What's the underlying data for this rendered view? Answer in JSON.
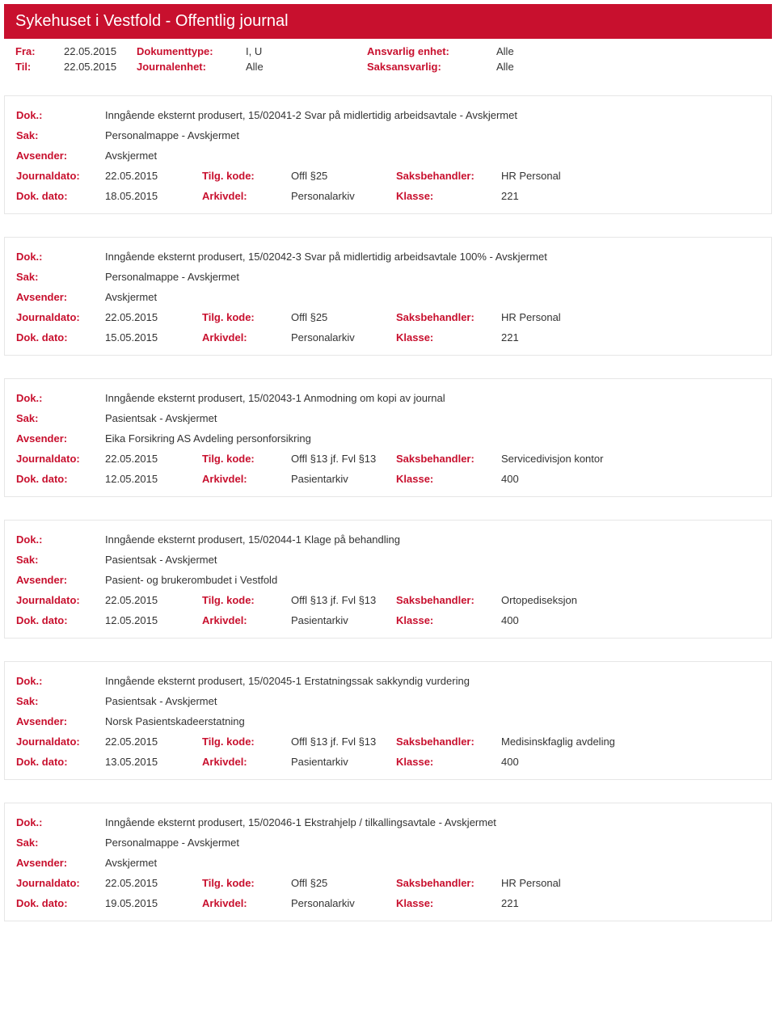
{
  "banner": {
    "title": "Sykehuset i Vestfold - Offentlig journal"
  },
  "meta": {
    "fra_label": "Fra:",
    "fra_value": "22.05.2015",
    "til_label": "Til:",
    "til_value": "22.05.2015",
    "dokumenttype_label": "Dokumenttype:",
    "dokumenttype_value": "I, U",
    "journalenhet_label": "Journalenhet:",
    "journalenhet_value": "Alle",
    "ansvarlig_label": "Ansvarlig enhet:",
    "ansvarlig_value": "Alle",
    "saksansvarlig_label": "Saksansvarlig:",
    "saksansvarlig_value": "Alle"
  },
  "labels": {
    "dok": "Dok.:",
    "sak": "Sak:",
    "avsender": "Avsender:",
    "journaldato": "Journaldato:",
    "dokdato": "Dok. dato:",
    "tilgkode": "Tilg. kode:",
    "arkivdel": "Arkivdel:",
    "saksbehandler": "Saksbehandler:",
    "klasse": "Klasse:"
  },
  "entries": [
    {
      "dok": "Inngående eksternt produsert, 15/02041-2 Svar på midlertidig arbeidsavtale - Avskjermet",
      "sak": "Personalmappe - Avskjermet",
      "avsender": "Avskjermet",
      "journaldato": "22.05.2015",
      "tilgkode": "Offl §25",
      "saksbehandler": "HR Personal",
      "dokdato": "18.05.2015",
      "arkivdel": "Personalarkiv",
      "klasse": "221"
    },
    {
      "dok": "Inngående eksternt produsert, 15/02042-3 Svar på midlertidig arbeidsavtale 100% - Avskjermet",
      "sak": "Personalmappe - Avskjermet",
      "avsender": "Avskjermet",
      "journaldato": "22.05.2015",
      "tilgkode": "Offl §25",
      "saksbehandler": "HR Personal",
      "dokdato": "15.05.2015",
      "arkivdel": "Personalarkiv",
      "klasse": "221"
    },
    {
      "dok": "Inngående eksternt produsert, 15/02043-1 Anmodning om kopi av journal",
      "sak": "Pasientsak - Avskjermet",
      "avsender": "Eika Forsikring AS Avdeling personforsikring",
      "journaldato": "22.05.2015",
      "tilgkode": "Offl §13 jf. Fvl §13",
      "saksbehandler": "Servicedivisjon kontor",
      "dokdato": "12.05.2015",
      "arkivdel": "Pasientarkiv",
      "klasse": "400"
    },
    {
      "dok": "Inngående eksternt produsert, 15/02044-1 Klage på behandling",
      "sak": "Pasientsak - Avskjermet",
      "avsender": "Pasient- og brukerombudet i Vestfold",
      "journaldato": "22.05.2015",
      "tilgkode": "Offl §13 jf. Fvl §13",
      "saksbehandler": "Ortopediseksjon",
      "dokdato": "12.05.2015",
      "arkivdel": "Pasientarkiv",
      "klasse": "400"
    },
    {
      "dok": "Inngående eksternt produsert, 15/02045-1 Erstatningssak sakkyndig vurdering",
      "sak": "Pasientsak - Avskjermet",
      "avsender": "Norsk Pasientskadeerstatning",
      "journaldato": "22.05.2015",
      "tilgkode": "Offl §13 jf. Fvl §13",
      "saksbehandler": "Medisinskfaglig avdeling",
      "dokdato": "13.05.2015",
      "arkivdel": "Pasientarkiv",
      "klasse": "400"
    },
    {
      "dok": "Inngående eksternt produsert, 15/02046-1 Ekstrahjelp / tilkallingsavtale - Avskjermet",
      "sak": "Personalmappe - Avskjermet",
      "avsender": "Avskjermet",
      "journaldato": "22.05.2015",
      "tilgkode": "Offl §25",
      "saksbehandler": "HR Personal",
      "dokdato": "19.05.2015",
      "arkivdel": "Personalarkiv",
      "klasse": "221"
    }
  ]
}
